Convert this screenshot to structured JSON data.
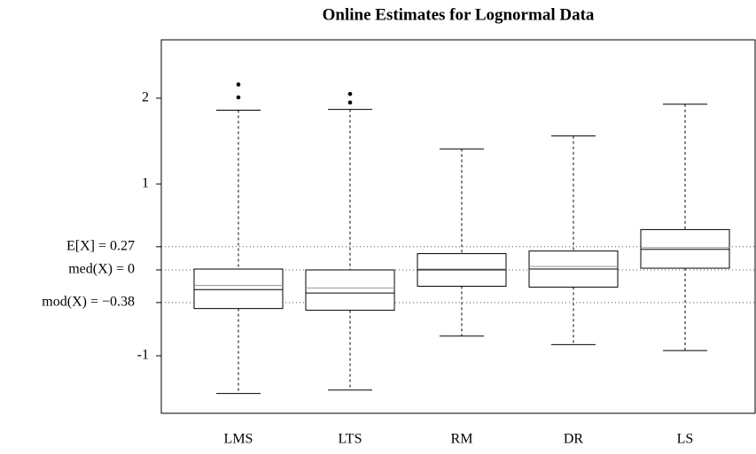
{
  "chart_data": {
    "type": "box",
    "title": "Online Estimates for Lognormal Data",
    "categories": [
      "LMS",
      "LTS",
      "RM",
      "DR",
      "LS"
    ],
    "boxes": [
      {
        "whisker_low": -1.44,
        "q1": -0.45,
        "median": -0.23,
        "mean": -0.18,
        "q3": 0.01,
        "whisker_high": 1.86,
        "outliers": [
          2.01,
          2.16
        ]
      },
      {
        "whisker_low": -1.4,
        "q1": -0.47,
        "median": -0.27,
        "mean": -0.21,
        "q3": 0.0,
        "whisker_high": 1.87,
        "outliers": [
          1.95,
          2.05
        ]
      },
      {
        "whisker_low": -0.77,
        "q1": -0.19,
        "median": 0.0,
        "mean": 0.01,
        "q3": 0.19,
        "whisker_high": 1.41,
        "outliers": []
      },
      {
        "whisker_low": -0.87,
        "q1": -0.2,
        "median": 0.01,
        "mean": 0.04,
        "q3": 0.22,
        "whisker_high": 1.56,
        "outliers": []
      },
      {
        "whisker_low": -0.94,
        "q1": 0.02,
        "median": 0.24,
        "mean": 0.26,
        "q3": 0.47,
        "whisker_high": 1.93,
        "outliers": []
      }
    ],
    "ylim": [
      -1.67,
      2.68
    ],
    "yticks": [
      -1,
      1,
      2
    ],
    "reference_lines": [
      {
        "value": 0.27,
        "label": "E[X] = 0.27"
      },
      {
        "value": 0,
        "label": "med(X) = 0"
      },
      {
        "value": -0.38,
        "label": "mod(X) = −0.38"
      }
    ],
    "color": "#000000",
    "mean_color": "#999999"
  }
}
